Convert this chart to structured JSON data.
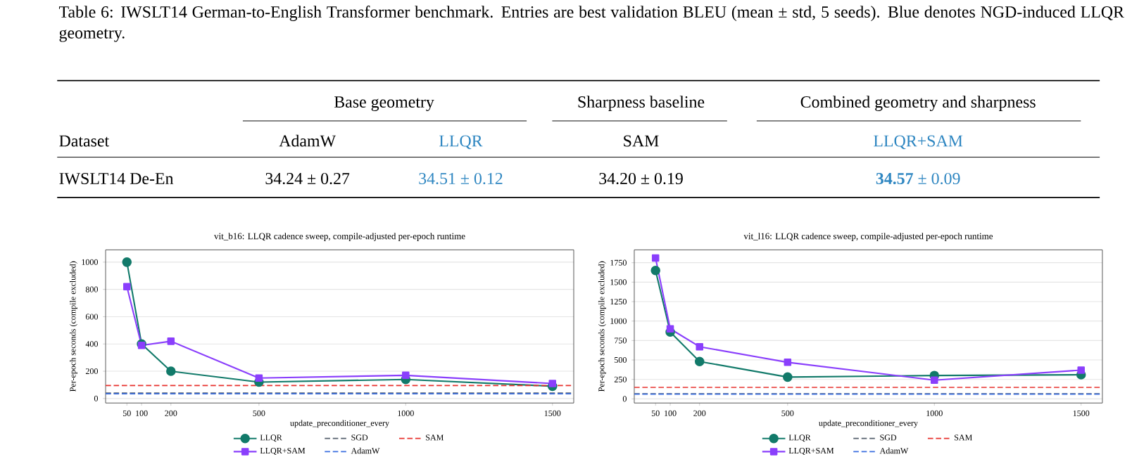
{
  "chart_data": [
    {
      "type": "other",
      "title": "Table 6: IWSLT14 German-to-English Transformer benchmark. Entries are best validation BLEU (mean ± std, 5 seeds). Blue denotes NGD-induced LLQR geometry.",
      "categories": [
        "Dataset",
        "AdamW",
        "LLQR",
        "SAM",
        "LLQR+SAM"
      ],
      "colors": [
        "#000000",
        "#000000",
        "#2e86c1",
        "#000000",
        "#2e86c1"
      ],
      "annotations": [
        "Base geometry",
        "Sharpness baseline",
        "Combined geometry and sharpness",
        "IWSLT14 De-En",
        "34.24 ± 0.27",
        "34.51 ± 0.12",
        "34.20 ± 0.19",
        "**34.57** ± 0.09"
      ]
    },
    {
      "type": "line",
      "title": "vit_b16: LLQR cadence sweep, compile-adjusted per-epoch runtime",
      "xlabel": "update_preconditioner_every",
      "ylabel": "Per-epoch seconds (compile excluded)",
      "x": [
        50,
        100,
        200,
        500,
        1000,
        1500
      ],
      "xlim": [
        -22.5,
        1572.5
      ],
      "xticks": [
        50,
        100,
        200,
        500,
        1000,
        1500
      ],
      "ylim": [
        -33,
        1090
      ],
      "yticks": [
        0,
        200,
        400,
        600,
        800,
        1000
      ],
      "grid": "y",
      "legend": "bottom",
      "series": [
        {
          "name": "LLQR",
          "color": "#127a6a",
          "marker": "circle",
          "values": [
            1000,
            400,
            200,
            120,
            140,
            90
          ]
        },
        {
          "name": "LLQR+SAM",
          "color": "#8a3ffc",
          "marker": "square",
          "values": [
            820,
            390,
            420,
            150,
            170,
            110
          ]
        }
      ],
      "ref_lines": [
        {
          "axis": "y",
          "value": 40,
          "label": "SGD",
          "color": "#555f6d",
          "line_style": "dashed"
        },
        {
          "axis": "y",
          "value": 35,
          "label": "AdamW",
          "color": "#3b6fe0",
          "line_style": "dashed"
        },
        {
          "axis": "y",
          "value": 95,
          "label": "SAM",
          "color": "#e8322e",
          "line_style": "dashed"
        }
      ]
    },
    {
      "type": "line",
      "title": "vit_l16: LLQR cadence sweep, compile-adjusted per-epoch runtime",
      "xlabel": "update_preconditioner_every",
      "ylabel": "Per-epoch seconds (compile excluded)",
      "x": [
        50,
        100,
        200,
        500,
        1000,
        1500
      ],
      "xlim": [
        -22.5,
        1572.5
      ],
      "xticks": [
        50,
        100,
        200,
        500,
        1000,
        1500
      ],
      "ylim": [
        -53,
        1915
      ],
      "yticks": [
        0,
        250,
        500,
        750,
        1000,
        1250,
        1500,
        1750
      ],
      "grid": "y",
      "legend": "bottom",
      "series": [
        {
          "name": "LLQR",
          "color": "#127a6a",
          "marker": "circle",
          "values": [
            1650,
            860,
            480,
            280,
            300,
            310
          ]
        },
        {
          "name": "LLQR+SAM",
          "color": "#8a3ffc",
          "marker": "square",
          "values": [
            1810,
            900,
            670,
            470,
            240,
            370
          ]
        }
      ],
      "ref_lines": [
        {
          "axis": "y",
          "value": 65,
          "label": "SGD",
          "color": "#555f6d",
          "line_style": "dashed"
        },
        {
          "axis": "y",
          "value": 60,
          "label": "AdamW",
          "color": "#3b6fe0",
          "line_style": "dashed"
        },
        {
          "axis": "y",
          "value": 148,
          "label": "SAM",
          "color": "#e8322e",
          "line_style": "dashed"
        }
      ]
    }
  ]
}
